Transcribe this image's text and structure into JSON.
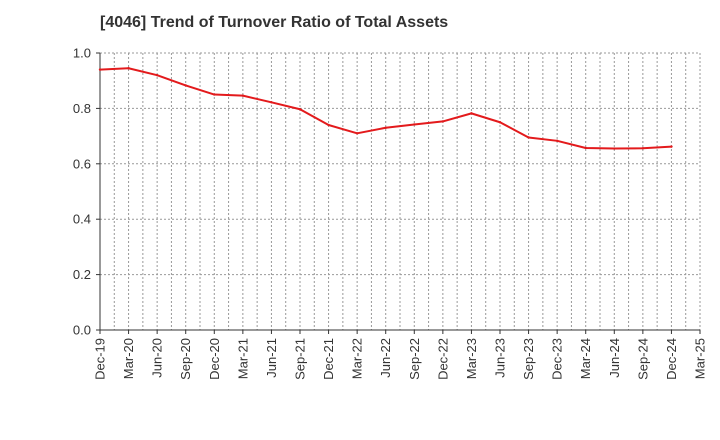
{
  "chart_data": {
    "type": "line",
    "title": "[4046]  Trend of Turnover Ratio of Total Assets",
    "xlabel": "",
    "ylabel": "",
    "ylim": [
      0.0,
      1.0
    ],
    "y_ticks": [
      "0.0",
      "0.2",
      "0.4",
      "0.6",
      "0.8",
      "1.0"
    ],
    "x_ticks": [
      "Dec-19",
      "Mar-20",
      "Jun-20",
      "Sep-20",
      "Dec-20",
      "Mar-21",
      "Jun-21",
      "Sep-21",
      "Dec-21",
      "Mar-22",
      "Jun-22",
      "Sep-22",
      "Dec-22",
      "Mar-23",
      "Jun-23",
      "Sep-23",
      "Dec-23",
      "Mar-24",
      "Jun-24",
      "Sep-24",
      "Dec-24",
      "Mar-25"
    ],
    "grid": true,
    "series": [
      {
        "color": "#e31a1c",
        "x": [
          "Dec-19",
          "Mar-20",
          "Jun-20",
          "Sep-20",
          "Dec-20",
          "Mar-21",
          "Jun-21",
          "Sep-21",
          "Dec-21",
          "Mar-22",
          "Jun-22",
          "Sep-22",
          "Dec-22",
          "Mar-23",
          "Jun-23",
          "Sep-23",
          "Dec-23",
          "Mar-24",
          "Jun-24",
          "Sep-24",
          "Dec-24"
        ],
        "values": [
          0.94,
          0.945,
          0.92,
          0.883,
          0.85,
          0.846,
          0.822,
          0.797,
          0.74,
          0.71,
          0.73,
          0.742,
          0.753,
          0.782,
          0.75,
          0.695,
          0.683,
          0.657,
          0.655,
          0.656,
          0.662
        ]
      }
    ]
  }
}
